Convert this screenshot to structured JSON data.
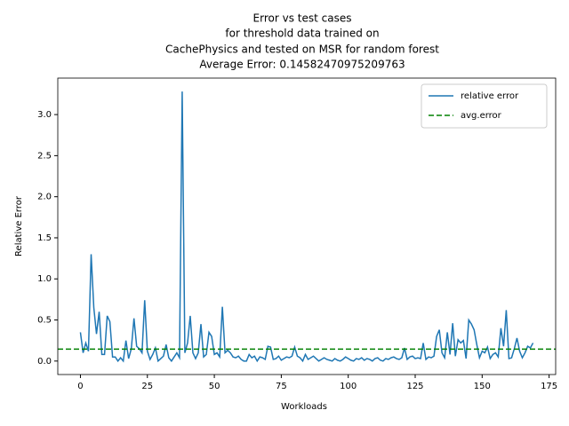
{
  "chart_data": {
    "type": "line",
    "title": [
      "Error vs test cases",
      "for threshold data trained on",
      "CachePhysics and tested on MSR for random forest",
      "Average Error: 0.14582470975209763"
    ],
    "xlabel": "Workloads",
    "ylabel": "Relative Error",
    "x": [
      0,
      1,
      2,
      3,
      4,
      5,
      6,
      7,
      8,
      9,
      10,
      11,
      12,
      13,
      14,
      15,
      16,
      17,
      18,
      19,
      20,
      21,
      22,
      23,
      24,
      25,
      26,
      27,
      28,
      29,
      30,
      31,
      32,
      33,
      34,
      35,
      36,
      37,
      38,
      39,
      40,
      41,
      42,
      43,
      44,
      45,
      46,
      47,
      48,
      49,
      50,
      51,
      52,
      53,
      54,
      55,
      56,
      57,
      58,
      59,
      60,
      61,
      62,
      63,
      64,
      65,
      66,
      67,
      68,
      69,
      70,
      71,
      72,
      73,
      74,
      75,
      76,
      77,
      78,
      79,
      80,
      81,
      82,
      83,
      84,
      85,
      86,
      87,
      88,
      89,
      90,
      91,
      92,
      93,
      94,
      95,
      96,
      97,
      98,
      99,
      100,
      101,
      102,
      103,
      104,
      105,
      106,
      107,
      108,
      109,
      110,
      111,
      112,
      113,
      114,
      115,
      116,
      117,
      118,
      119,
      120,
      121,
      122,
      123,
      124,
      125,
      126,
      127,
      128,
      129,
      130,
      131,
      132,
      133,
      134,
      135,
      136,
      137,
      138,
      139,
      140,
      141,
      142,
      143,
      144,
      145,
      146,
      147,
      148,
      149,
      150,
      151,
      152,
      153,
      154,
      155,
      156,
      157,
      158,
      159,
      160,
      161,
      162,
      163,
      164,
      165,
      166,
      167,
      168,
      169
    ],
    "series": [
      {
        "name": "relative error",
        "color": "#1f77b4",
        "style": "solid",
        "values": [
          0.35,
          0.1,
          0.22,
          0.12,
          1.3,
          0.65,
          0.33,
          0.6,
          0.08,
          0.08,
          0.55,
          0.48,
          0.05,
          0.05,
          0.0,
          0.04,
          0.0,
          0.25,
          0.03,
          0.15,
          0.52,
          0.18,
          0.15,
          0.1,
          0.74,
          0.12,
          0.02,
          0.08,
          0.16,
          0.0,
          0.03,
          0.06,
          0.2,
          0.04,
          0.0,
          0.05,
          0.1,
          0.04,
          3.28,
          0.1,
          0.22,
          0.55,
          0.1,
          0.03,
          0.1,
          0.45,
          0.05,
          0.08,
          0.35,
          0.3,
          0.08,
          0.1,
          0.05,
          0.66,
          0.1,
          0.13,
          0.1,
          0.05,
          0.04,
          0.06,
          0.02,
          0.0,
          0.0,
          0.08,
          0.04,
          0.06,
          0.0,
          0.05,
          0.04,
          0.02,
          0.18,
          0.17,
          0.02,
          0.03,
          0.06,
          0.01,
          0.03,
          0.05,
          0.04,
          0.06,
          0.17,
          0.06,
          0.04,
          0.0,
          0.08,
          0.02,
          0.04,
          0.06,
          0.03,
          0.0,
          0.02,
          0.04,
          0.02,
          0.01,
          0.0,
          0.03,
          0.01,
          0.0,
          0.02,
          0.05,
          0.03,
          0.01,
          0.0,
          0.03,
          0.02,
          0.04,
          0.01,
          0.03,
          0.02,
          0.0,
          0.03,
          0.04,
          0.01,
          0.0,
          0.03,
          0.02,
          0.04,
          0.05,
          0.03,
          0.02,
          0.04,
          0.16,
          0.02,
          0.05,
          0.06,
          0.03,
          0.04,
          0.03,
          0.22,
          0.02,
          0.05,
          0.04,
          0.06,
          0.3,
          0.38,
          0.1,
          0.04,
          0.35,
          0.08,
          0.46,
          0.06,
          0.26,
          0.22,
          0.25,
          0.03,
          0.5,
          0.45,
          0.38,
          0.2,
          0.04,
          0.12,
          0.1,
          0.17,
          0.03,
          0.08,
          0.1,
          0.05,
          0.4,
          0.18,
          0.62,
          0.03,
          0.04,
          0.15,
          0.28,
          0.12,
          0.04,
          0.1,
          0.18,
          0.16,
          0.22
        ]
      },
      {
        "name": "avg.error",
        "color": "#008000",
        "style": "dashed",
        "value": 0.14582470975209763
      }
    ],
    "xlim": [
      -8.45,
      177.45
    ],
    "ylim": [
      -0.164,
      3.444
    ],
    "xticks": [
      0,
      25,
      50,
      75,
      100,
      125,
      150,
      175
    ],
    "yticks": [
      {
        "value": 0,
        "label": "0.0"
      },
      {
        "value": 0.5,
        "label": "0.5"
      },
      {
        "value": 1,
        "label": "1.0"
      },
      {
        "value": 1.5,
        "label": "1.5"
      },
      {
        "value": 2,
        "label": "2.0"
      },
      {
        "value": 2.5,
        "label": "2.5"
      },
      {
        "value": 3,
        "label": "3.0"
      }
    ],
    "legend": "upper right"
  }
}
